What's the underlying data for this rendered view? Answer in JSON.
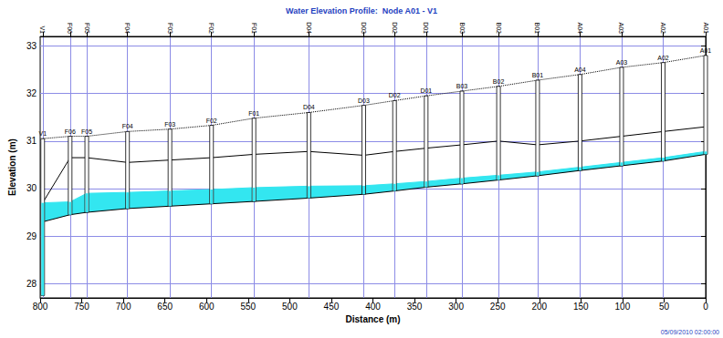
{
  "chart_data": {
    "type": "line",
    "title": "Water Elevation Profile:  Node A01 - V1",
    "x_label": "Distance (m)",
    "y_label": "Elevation (m)",
    "annotations": [
      "05/09/2010 02:00:00"
    ],
    "xlim": [
      800,
      0
    ],
    "xticks": [
      800,
      750,
      700,
      650,
      600,
      550,
      500,
      450,
      400,
      350,
      300,
      250,
      200,
      150,
      100,
      50,
      0
    ],
    "ylim": [
      27.7,
      33.2
    ],
    "yticks": [
      28,
      29,
      30,
      31,
      32,
      33
    ],
    "grid": true,
    "x": [
      797,
      764,
      744,
      695,
      644,
      594,
      543,
      477,
      411,
      374,
      336,
      293,
      249,
      202,
      151,
      101,
      51,
      0
    ],
    "nodes": {
      "names": [
        "V1",
        "F06",
        "F05",
        "F04",
        "F03",
        "F02",
        "F01",
        "D04",
        "D03",
        "D02",
        "D01",
        "B03",
        "B02",
        "B01",
        "A04",
        "A03",
        "A02",
        "A01"
      ],
      "bottom": [
        27.75,
        29.45,
        29.5,
        29.58,
        29.63,
        29.68,
        29.73,
        29.8,
        29.88,
        29.95,
        30.03,
        30.1,
        30.18,
        30.27,
        30.38,
        30.48,
        30.58,
        30.72
      ]
    },
    "series": [
      {
        "type": "line",
        "line_style": "dotted",
        "color": "#000000",
        "values": [
          31.05,
          31.1,
          31.1,
          31.2,
          31.25,
          31.33,
          31.48,
          31.6,
          31.75,
          31.85,
          31.95,
          32.05,
          32.15,
          32.28,
          32.4,
          32.55,
          32.65,
          32.8
        ]
      },
      {
        "type": "line",
        "line_style": "solid",
        "color": "#000000",
        "values": [
          29.7,
          30.65,
          30.65,
          30.55,
          30.6,
          30.65,
          30.72,
          30.78,
          30.7,
          30.78,
          30.85,
          30.92,
          31.0,
          30.92,
          31.0,
          31.1,
          31.2,
          31.3
        ]
      },
      {
        "type": "area",
        "color": "#33e6f0",
        "values": [
          29.7,
          29.72,
          29.9,
          29.92,
          29.95,
          29.98,
          30.02,
          30.05,
          30.06,
          30.1,
          30.15,
          30.22,
          30.28,
          30.35,
          30.45,
          30.55,
          30.65,
          30.78
        ],
        "bottom": [
          29.3,
          29.45,
          29.5,
          29.58,
          29.63,
          29.68,
          29.73,
          29.8,
          29.88,
          29.95,
          30.03,
          30.1,
          30.18,
          30.27,
          30.38,
          30.48,
          30.58,
          30.72
        ]
      }
    ]
  }
}
